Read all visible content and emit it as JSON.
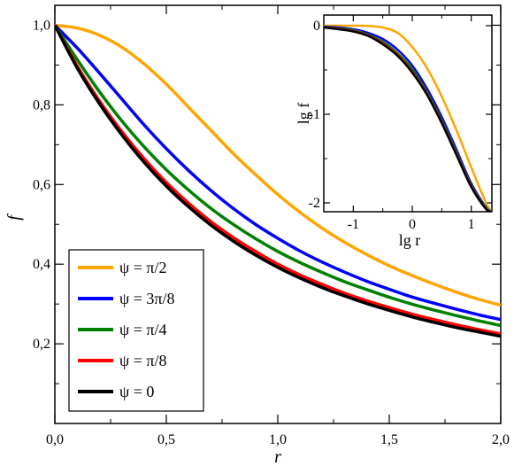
{
  "chart_data": [
    {
      "type": "line",
      "title": "",
      "xlabel": "r",
      "ylabel": "f",
      "xlim": [
        0,
        2
      ],
      "ylim": [
        0,
        1.05
      ],
      "grid": false,
      "legend_position": "bottom-left",
      "x_ticks": [
        "0,0",
        "0,5",
        "1,0",
        "1,5",
        "2,0"
      ],
      "y_ticks": [
        "0,2",
        "0,4",
        "0,6",
        "0,8",
        "1,0"
      ],
      "x": [
        0,
        0.1,
        0.2,
        0.3,
        0.4,
        0.5,
        0.6,
        0.7,
        0.8,
        0.9,
        1.0,
        1.1,
        1.2,
        1.3,
        1.4,
        1.5,
        1.6,
        1.7,
        1.8,
        1.9,
        2.0
      ],
      "series": [
        {
          "name": "ψ = π/2",
          "color": "#ffa500",
          "values": [
            1.0,
            0.993,
            0.975,
            0.945,
            0.903,
            0.852,
            0.794,
            0.736,
            0.678,
            0.625,
            0.575,
            0.53,
            0.49,
            0.455,
            0.424,
            0.396,
            0.372,
            0.35,
            0.33,
            0.312,
            0.297
          ]
        },
        {
          "name": "ψ = 3π/8",
          "color": "#0000ff",
          "values": [
            1.0,
            0.943,
            0.88,
            0.815,
            0.75,
            0.69,
            0.635,
            0.585,
            0.54,
            0.5,
            0.465,
            0.433,
            0.405,
            0.38,
            0.357,
            0.337,
            0.318,
            0.302,
            0.287,
            0.273,
            0.261
          ]
        },
        {
          "name": "ψ = π/4",
          "color": "#008000",
          "values": [
            1.0,
            0.914,
            0.833,
            0.76,
            0.695,
            0.637,
            0.586,
            0.54,
            0.5,
            0.464,
            0.432,
            0.404,
            0.379,
            0.356,
            0.336,
            0.317,
            0.3,
            0.285,
            0.271,
            0.258,
            0.246
          ]
        },
        {
          "name": "ψ = π/8",
          "color": "#ff0000",
          "values": [
            1.0,
            0.898,
            0.81,
            0.733,
            0.665,
            0.605,
            0.553,
            0.507,
            0.467,
            0.432,
            0.4,
            0.373,
            0.349,
            0.327,
            0.308,
            0.291,
            0.275,
            0.261,
            0.248,
            0.236,
            0.225
          ]
        },
        {
          "name": "ψ = 0",
          "color": "#000000",
          "values": [
            1.0,
            0.893,
            0.803,
            0.725,
            0.656,
            0.596,
            0.544,
            0.498,
            0.458,
            0.423,
            0.392,
            0.365,
            0.341,
            0.32,
            0.301,
            0.284,
            0.268,
            0.254,
            0.241,
            0.23,
            0.219
          ]
        }
      ]
    },
    {
      "type": "line",
      "title": "",
      "xlabel": "lg r",
      "ylabel": "lg f",
      "xlim": [
        -1.5,
        1.35
      ],
      "ylim": [
        -2.1,
        0.12
      ],
      "grid": false,
      "legend_position": "none",
      "x_ticks": [
        "-1",
        "0",
        "1"
      ],
      "y_ticks": [
        "-2",
        "-1",
        "0"
      ],
      "x": [
        -1.5,
        -1.25,
        -1.0,
        -0.75,
        -0.5,
        -0.25,
        0.0,
        0.25,
        0.5,
        0.75,
        1.0,
        1.25,
        1.35
      ],
      "series": [
        {
          "name": "ψ = π/2",
          "color": "#ffa500",
          "values": [
            0.0,
            0.0,
            0.0,
            -0.002,
            -0.02,
            -0.08,
            -0.24,
            -0.48,
            -0.8,
            -1.18,
            -1.6,
            -2.0,
            -2.1
          ]
        },
        {
          "name": "ψ = 3π/8",
          "color": "#0000ff",
          "values": [
            -0.01,
            -0.02,
            -0.04,
            -0.08,
            -0.15,
            -0.27,
            -0.45,
            -0.71,
            -1.03,
            -1.4,
            -1.78,
            -2.05,
            -2.1
          ]
        },
        {
          "name": "ψ = π/4",
          "color": "#008000",
          "values": [
            -0.015,
            -0.03,
            -0.05,
            -0.1,
            -0.18,
            -0.31,
            -0.49,
            -0.75,
            -1.07,
            -1.43,
            -1.8,
            -2.06,
            -2.1
          ]
        },
        {
          "name": "ψ = π/8",
          "color": "#ff0000",
          "values": [
            -0.02,
            -0.035,
            -0.06,
            -0.11,
            -0.2,
            -0.33,
            -0.52,
            -0.77,
            -1.09,
            -1.45,
            -1.81,
            -2.07,
            -2.1
          ]
        },
        {
          "name": "ψ = 0",
          "color": "#000000",
          "values": [
            -0.02,
            -0.04,
            -0.065,
            -0.115,
            -0.21,
            -0.34,
            -0.53,
            -0.78,
            -1.1,
            -1.46,
            -1.82,
            -2.07,
            -2.1
          ]
        }
      ]
    }
  ]
}
